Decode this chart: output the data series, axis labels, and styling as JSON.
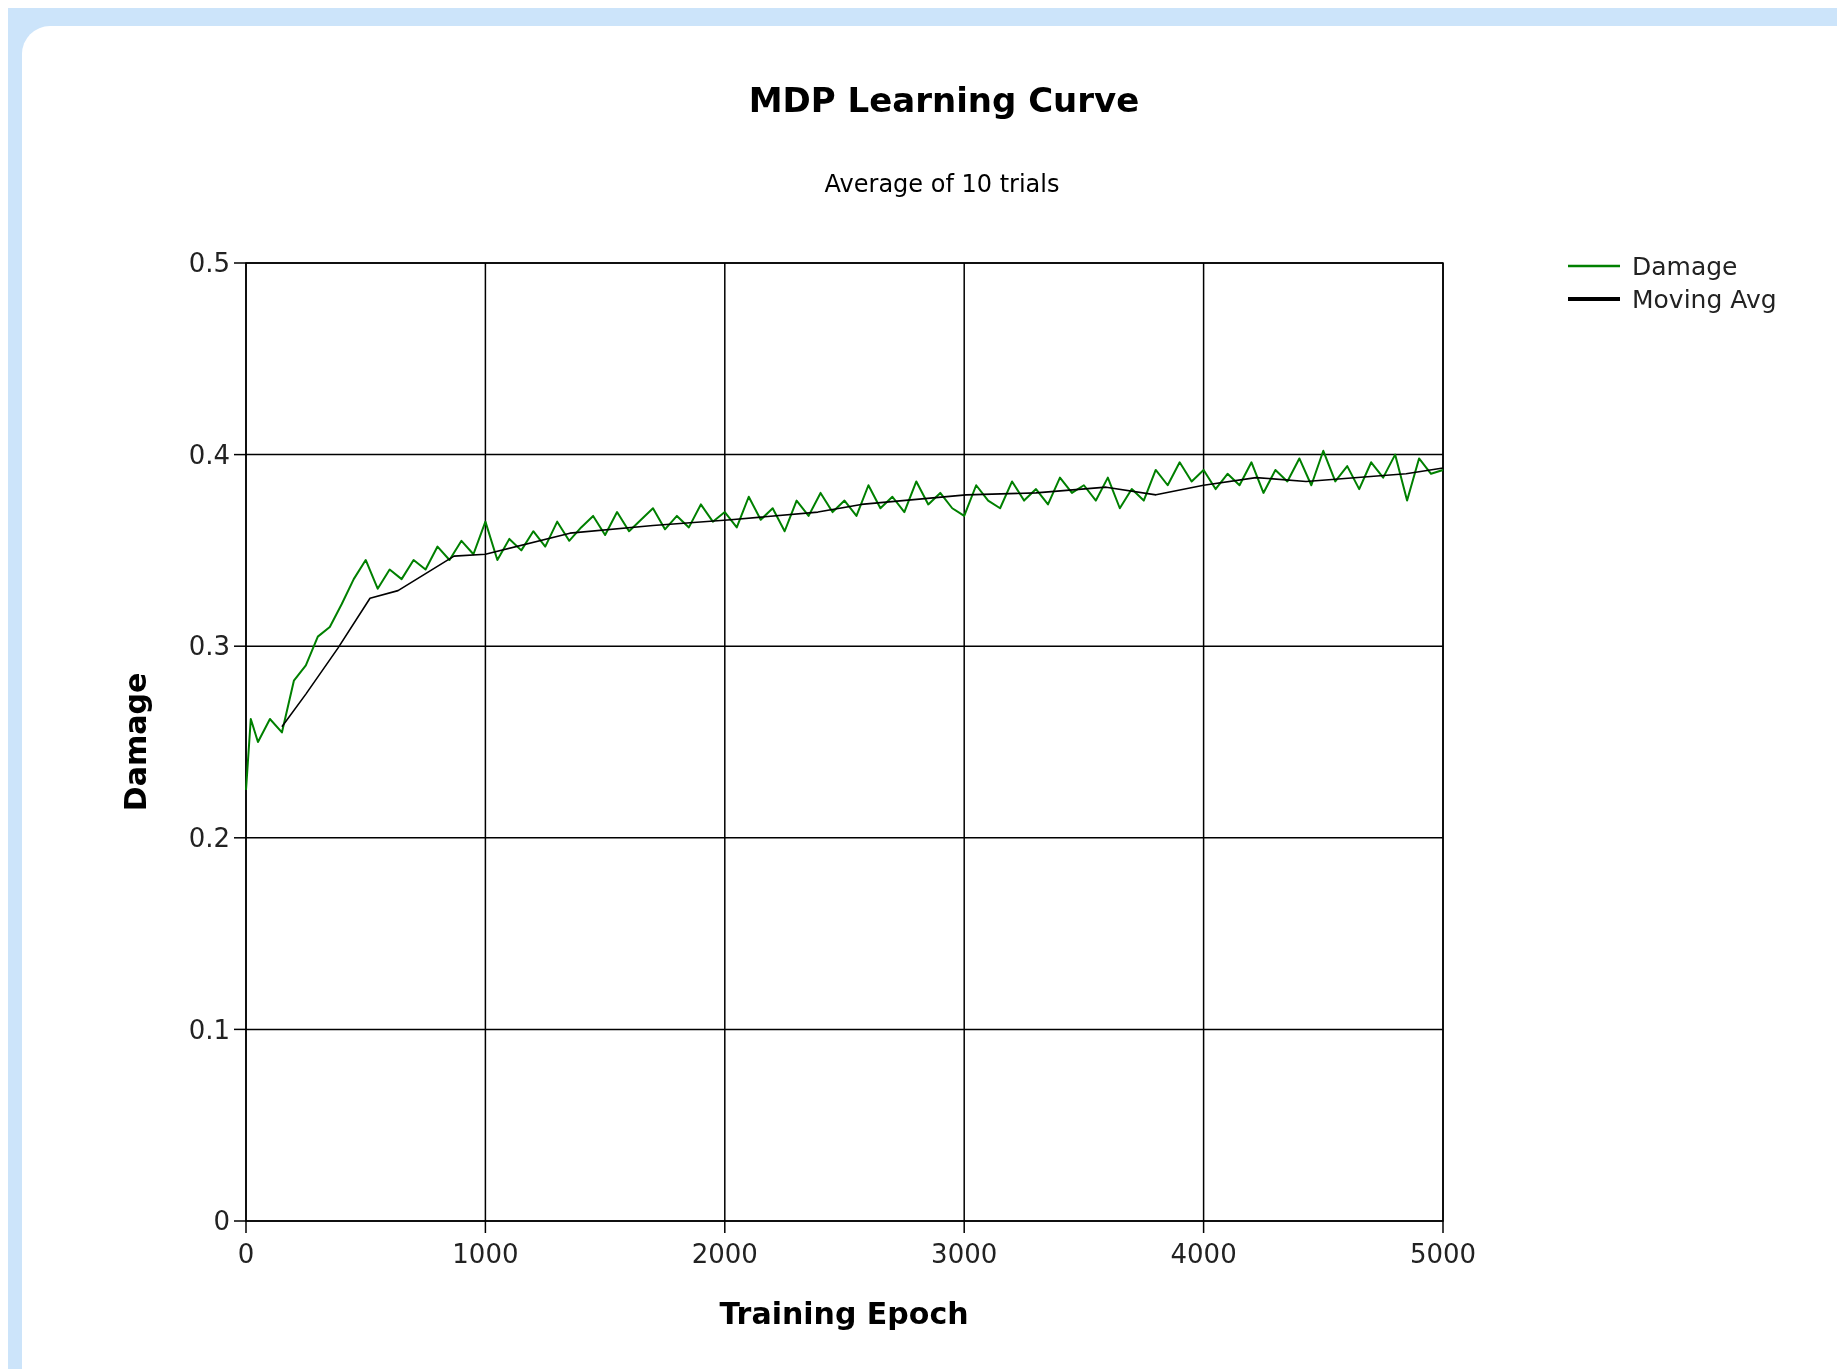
{
  "chart_data": {
    "type": "line",
    "title": "MDP Learning Curve",
    "subtitle": "Average of 10 trials",
    "xlabel": "Training Epoch",
    "ylabel": "Damage",
    "xlim": [
      0,
      5000
    ],
    "xticks": [
      0,
      1000,
      2000,
      3000,
      4000,
      5000
    ],
    "ylim": [
      0,
      0.5
    ],
    "yticks": [
      0,
      0.1,
      0.2,
      0.3,
      0.4,
      0.5
    ],
    "grid": true,
    "legend": "top right",
    "marker": "none",
    "line_style": "solid",
    "series": [
      {
        "name": "Damage",
        "color": "#008000",
        "x": [
          0,
          20,
          50,
          100,
          150,
          200,
          250,
          300,
          350,
          400,
          450,
          500,
          550,
          600,
          650,
          700,
          750,
          800,
          850,
          900,
          950,
          1000,
          1050,
          1100,
          1150,
          1200,
          1250,
          1300,
          1350,
          1400,
          1450,
          1500,
          1550,
          1600,
          1650,
          1700,
          1750,
          1800,
          1850,
          1900,
          1950,
          2000,
          2050,
          2100,
          2150,
          2200,
          2250,
          2300,
          2350,
          2400,
          2450,
          2500,
          2550,
          2600,
          2650,
          2700,
          2750,
          2800,
          2850,
          2900,
          2950,
          3000,
          3050,
          3100,
          3150,
          3200,
          3250,
          3300,
          3350,
          3400,
          3450,
          3500,
          3550,
          3600,
          3650,
          3700,
          3750,
          3800,
          3850,
          3900,
          3950,
          4000,
          4050,
          4100,
          4150,
          4200,
          4250,
          4300,
          4350,
          4400,
          4450,
          4500,
          4550,
          4600,
          4650,
          4700,
          4750,
          4800,
          4850,
          4900,
          4950,
          5000
        ],
        "values": [
          0.225,
          0.262,
          0.25,
          0.262,
          0.255,
          0.282,
          0.29,
          0.305,
          0.31,
          0.322,
          0.335,
          0.345,
          0.33,
          0.34,
          0.335,
          0.345,
          0.34,
          0.352,
          0.345,
          0.355,
          0.348,
          0.365,
          0.345,
          0.356,
          0.35,
          0.36,
          0.352,
          0.365,
          0.355,
          0.362,
          0.368,
          0.358,
          0.37,
          0.36,
          0.366,
          0.372,
          0.361,
          0.368,
          0.362,
          0.374,
          0.365,
          0.37,
          0.362,
          0.378,
          0.366,
          0.372,
          0.36,
          0.376,
          0.368,
          0.38,
          0.37,
          0.376,
          0.368,
          0.384,
          0.372,
          0.378,
          0.37,
          0.386,
          0.374,
          0.38,
          0.372,
          0.368,
          0.384,
          0.376,
          0.372,
          0.386,
          0.376,
          0.382,
          0.374,
          0.388,
          0.38,
          0.384,
          0.376,
          0.388,
          0.372,
          0.382,
          0.376,
          0.392,
          0.384,
          0.396,
          0.386,
          0.392,
          0.382,
          0.39,
          0.384,
          0.396,
          0.38,
          0.392,
          0.386,
          0.398,
          0.384,
          0.402,
          0.386,
          0.394,
          0.382,
          0.396,
          0.388,
          0.4,
          0.376,
          0.398,
          0.39,
          0.392
        ]
      },
      {
        "name": "Moving Avg",
        "color": "#000000",
        "x": [
          150,
          250,
          384,
          518,
          635,
          869,
          1000,
          1353,
          1700,
          2025,
          2389,
          2570,
          3008,
          3300,
          3593,
          3801,
          4000,
          4219,
          4428,
          4846,
          5000
        ],
        "values": [
          0.258,
          0.275,
          0.299,
          0.325,
          0.329,
          0.347,
          0.348,
          0.359,
          0.363,
          0.366,
          0.37,
          0.374,
          0.379,
          0.38,
          0.383,
          0.379,
          0.384,
          0.388,
          0.386,
          0.39,
          0.393
        ]
      }
    ]
  }
}
